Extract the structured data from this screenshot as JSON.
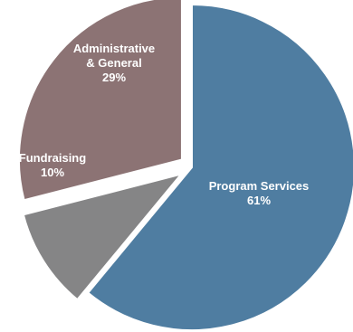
{
  "chart_data": {
    "type": "pie",
    "title": "",
    "legend": "none",
    "slices": [
      {
        "label_lines": [
          "Program Services"
        ],
        "value": 61,
        "value_label": "61%",
        "color": "#4F7DA1"
      },
      {
        "label_lines": [
          "Fundraising"
        ],
        "value": 10,
        "value_label": "10%",
        "color": "#858586"
      },
      {
        "label_lines": [
          "Administrative",
          "& General"
        ],
        "value": 29,
        "value_label": "29%",
        "color": "#8C7374"
      }
    ]
  }
}
